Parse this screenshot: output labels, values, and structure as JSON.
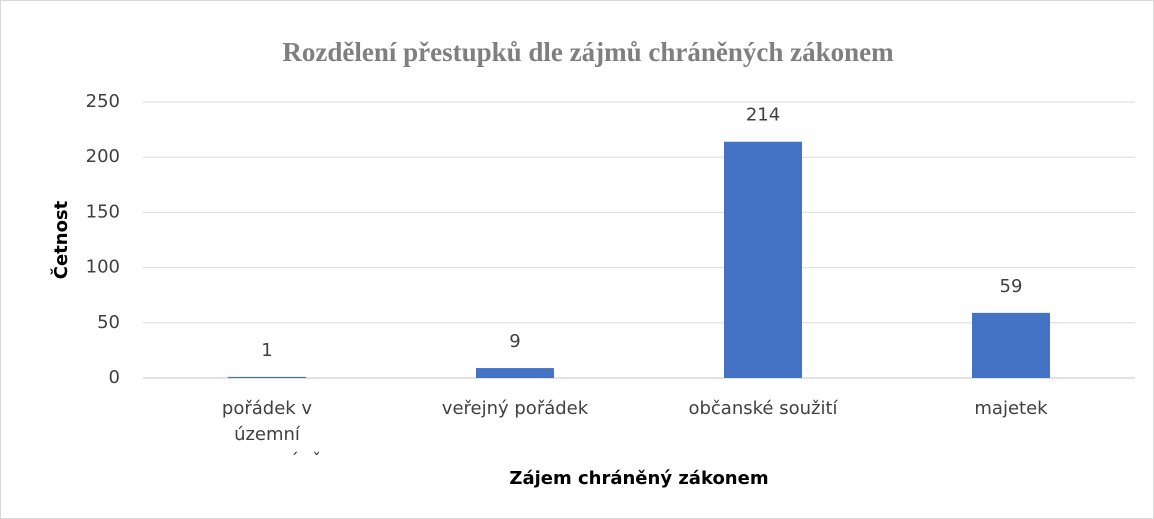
{
  "chart_data": {
    "type": "bar",
    "title": "Rozdělení přestupků dle zájmů chráněných zákonem",
    "x_label": "Zájem chráněný zákonem",
    "y_label": "Četnost",
    "categories": [
      "pořádek v územní samosprávě",
      "veřejný pořádek",
      "občanské soužití",
      "majetek"
    ],
    "values": [
      1,
      9,
      214,
      59
    ],
    "color": "#4472c4",
    "ylim": [
      0,
      250
    ],
    "yticks": [
      0,
      50,
      100,
      150,
      200,
      250
    ],
    "grid": true
  }
}
